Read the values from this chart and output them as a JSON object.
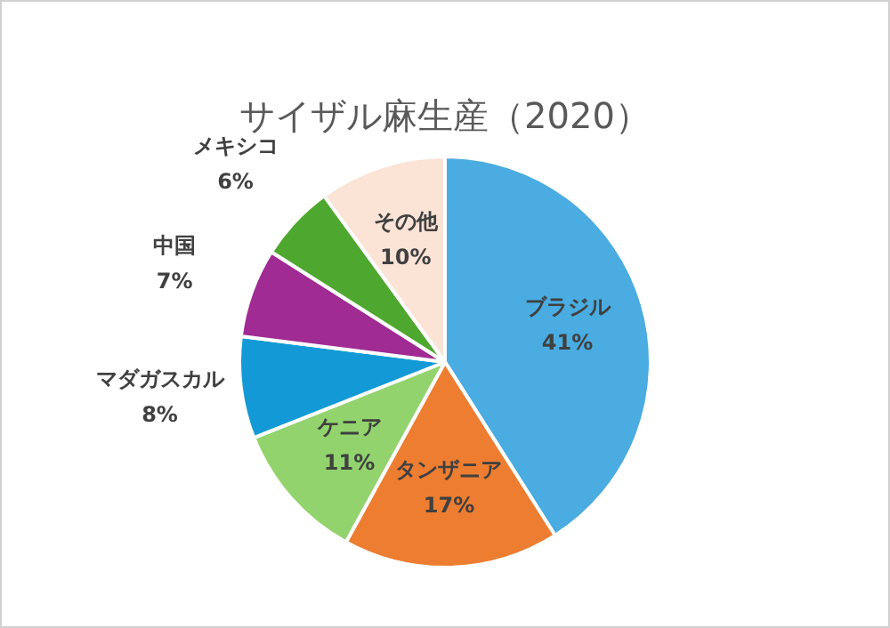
{
  "chart_data": {
    "type": "pie",
    "title": "サイザル麻生産（2020）",
    "categories": [
      "ブラジル",
      "タンザニア",
      "ケニア",
      "マダガスカル",
      "中国",
      "メキシコ",
      "その他"
    ],
    "values": [
      41,
      17,
      11,
      8,
      7,
      6,
      10
    ],
    "value_labels": [
      "41%",
      "17%",
      "11%",
      "8%",
      "7%",
      "6%",
      "10%"
    ],
    "colors": [
      "#4aace0",
      "#ed7d31",
      "#92d36e",
      "#139ad6",
      "#a02b93",
      "#4ea72e",
      "#fbe3d6"
    ],
    "legend": false
  }
}
